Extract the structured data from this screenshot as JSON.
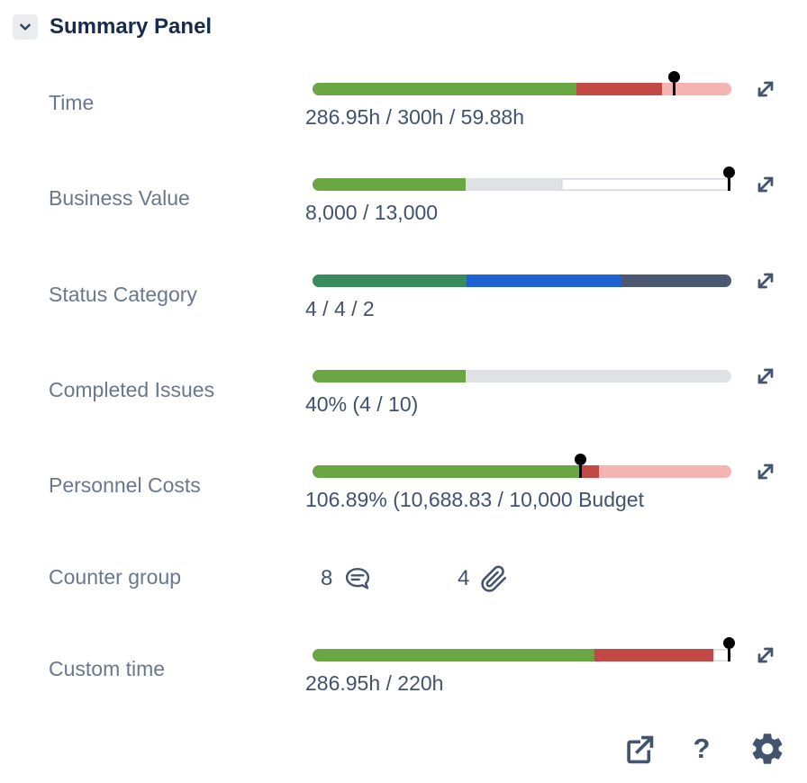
{
  "panel": {
    "title": "Summary Panel",
    "collapse_icon": "chevron-down"
  },
  "colors": {
    "green": "#6BA644",
    "red": "#C24A46",
    "pink": "#F3B4B2",
    "gray": "#DFE1E5",
    "white": "#FFFFFF",
    "seagreen": "#378B5D",
    "blue": "#1D61D2",
    "slate": "#4A5971",
    "marker": "#000000",
    "title_text": "#172B4D",
    "label_text": "#6B778C",
    "value_text": "#42526E",
    "icon": "#44546F"
  },
  "rows": [
    {
      "label": "Time",
      "value": "286.95h / 300h / 59.88h",
      "type": "bar",
      "bar": {
        "segments": [
          {
            "color": "green",
            "pct": 63.0
          },
          {
            "color": "red",
            "pct": 20.4
          },
          {
            "color": "pink",
            "pct": 16.6
          }
        ],
        "marker_pct": 86.4
      }
    },
    {
      "label": "Business Value",
      "value": "8,000 / 13,000",
      "type": "bar",
      "bar": {
        "segments": [
          {
            "color": "green",
            "pct": 36.5
          },
          {
            "color": "gray",
            "pct": 22.8
          },
          {
            "color": "white",
            "pct": 40.7
          }
        ],
        "marker_pct": 99.4
      }
    },
    {
      "label": "Status Category",
      "value": "4 / 4 / 2",
      "type": "bar",
      "bar": {
        "segments": [
          {
            "color": "seagreen",
            "pct": 36.8
          },
          {
            "color": "blue",
            "pct": 37.0
          },
          {
            "color": "slate",
            "pct": 26.2
          }
        ],
        "marker_pct": null
      }
    },
    {
      "label": "Completed Issues",
      "value": "40% (4 / 10)",
      "type": "bar",
      "bar": {
        "segments": [
          {
            "color": "green",
            "pct": 36.6
          },
          {
            "color": "gray",
            "pct": 63.4
          }
        ],
        "marker_pct": null
      }
    },
    {
      "label": "Personnel Costs",
      "value": "106.89% (10,688.83 / 10,000 Budget",
      "type": "bar",
      "bar": {
        "segments": [
          {
            "color": "green",
            "pct": 63.9
          },
          {
            "color": "red",
            "pct": 4.5
          },
          {
            "color": "pink",
            "pct": 31.6
          }
        ],
        "marker_pct": 63.9
      }
    },
    {
      "label": "Counter group",
      "type": "counters",
      "counters": [
        {
          "count": "8",
          "icon": "comment-icon"
        },
        {
          "count": "4",
          "icon": "attachment-icon"
        }
      ]
    },
    {
      "label": "Custom time",
      "value": "286.95h / 220h",
      "type": "bar",
      "bar": {
        "segments": [
          {
            "color": "green",
            "pct": 67.3
          },
          {
            "color": "red",
            "pct": 28.4
          },
          {
            "color": "white",
            "pct": 4.3
          }
        ],
        "marker_pct": 99.4
      }
    }
  ],
  "footer": {
    "icons": [
      "export-icon",
      "help-icon",
      "settings-icon"
    ],
    "help_label": "?"
  }
}
